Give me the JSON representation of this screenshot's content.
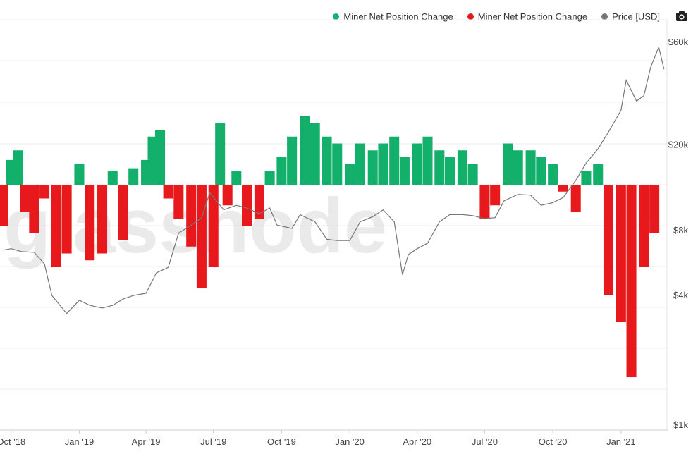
{
  "legend": {
    "items": [
      {
        "label": "Miner Net Position Change",
        "color": "#12b06a"
      },
      {
        "label": "Miner Net Position Change",
        "color": "#e8191c"
      },
      {
        "label": "Price [USD]",
        "color": "#777777"
      }
    ],
    "camera_icon": "camera-icon"
  },
  "watermark": "glassnode",
  "chart_data": {
    "type": "bar",
    "title": "",
    "series": [
      {
        "name": "Miner Net Position Change",
        "type": "bar",
        "colors": {
          "positive": "#12b06a",
          "negative": "#e8191c"
        },
        "x": [
          "2018-09-20",
          "2018-10-01",
          "2018-10-10",
          "2018-10-20",
          "2018-11-01",
          "2018-11-15",
          "2018-12-01",
          "2018-12-15",
          "2019-01-01",
          "2019-01-15",
          "2019-02-01",
          "2019-02-15",
          "2019-03-01",
          "2019-03-15",
          "2019-04-01",
          "2019-04-10",
          "2019-04-20",
          "2019-05-01",
          "2019-05-15",
          "2019-06-01",
          "2019-06-15",
          "2019-07-01",
          "2019-07-10",
          "2019-07-20",
          "2019-08-01",
          "2019-08-15",
          "2019-09-01",
          "2019-09-15",
          "2019-10-01",
          "2019-10-15",
          "2019-11-01",
          "2019-11-15",
          "2019-12-01",
          "2019-12-15",
          "2020-01-01",
          "2020-01-15",
          "2020-02-01",
          "2020-02-15",
          "2020-03-01",
          "2020-03-15",
          "2020-04-01",
          "2020-04-15",
          "2020-05-01",
          "2020-05-15",
          "2020-06-01",
          "2020-06-15",
          "2020-07-01",
          "2020-07-15",
          "2020-08-01",
          "2020-08-15",
          "2020-09-01",
          "2020-09-15",
          "2020-10-01",
          "2020-10-15",
          "2020-11-01",
          "2020-11-15",
          "2020-12-01",
          "2020-12-15",
          "2021-01-01",
          "2021-01-15",
          "2021-02-01",
          "2021-02-15"
        ],
        "values": [
          -30,
          18,
          25,
          -20,
          -35,
          -10,
          -60,
          -50,
          15,
          -55,
          -50,
          10,
          -40,
          12,
          18,
          35,
          40,
          -10,
          -25,
          -45,
          -75,
          -60,
          45,
          -15,
          10,
          -30,
          -25,
          10,
          20,
          35,
          50,
          45,
          35,
          30,
          15,
          30,
          25,
          30,
          35,
          20,
          30,
          35,
          25,
          20,
          25,
          15,
          -25,
          -15,
          30,
          25,
          25,
          20,
          15,
          -5,
          -20,
          10,
          15,
          -80,
          -100,
          -140,
          -60,
          -35
        ]
      },
      {
        "name": "Price [USD]",
        "type": "line",
        "color": "#777777",
        "x": [
          "2018-09-20",
          "2018-10-01",
          "2018-10-15",
          "2018-11-01",
          "2018-11-15",
          "2018-11-25",
          "2018-12-15",
          "2019-01-01",
          "2019-01-15",
          "2019-02-01",
          "2019-02-15",
          "2019-03-01",
          "2019-03-15",
          "2019-04-01",
          "2019-04-15",
          "2019-05-01",
          "2019-05-15",
          "2019-06-01",
          "2019-06-15",
          "2019-06-26",
          "2019-07-05",
          "2019-07-15",
          "2019-08-01",
          "2019-08-15",
          "2019-09-01",
          "2019-09-15",
          "2019-09-25",
          "2019-10-15",
          "2019-10-26",
          "2019-11-15",
          "2019-12-01",
          "2019-12-15",
          "2020-01-01",
          "2020-01-15",
          "2020-02-01",
          "2020-02-15",
          "2020-03-01",
          "2020-03-12",
          "2020-03-20",
          "2020-04-01",
          "2020-04-15",
          "2020-05-01",
          "2020-05-15",
          "2020-06-01",
          "2020-06-15",
          "2020-07-01",
          "2020-07-15",
          "2020-07-27",
          "2020-08-15",
          "2020-09-01",
          "2020-09-15",
          "2020-10-01",
          "2020-10-15",
          "2020-11-01",
          "2020-11-15",
          "2020-12-01",
          "2020-12-15",
          "2021-01-01",
          "2021-01-08",
          "2021-01-22",
          "2021-02-01",
          "2021-02-10",
          "2021-02-21",
          "2021-02-28"
        ],
        "values": [
          6500,
          6600,
          6400,
          6350,
          5600,
          4000,
          3300,
          3800,
          3600,
          3500,
          3600,
          3850,
          4000,
          4100,
          5100,
          5400,
          7800,
          8500,
          9200,
          12000,
          11000,
          10000,
          10500,
          10200,
          9600,
          10200,
          8500,
          8200,
          9500,
          8800,
          7300,
          7200,
          7200,
          8800,
          9300,
          10000,
          8800,
          5000,
          6200,
          6600,
          7000,
          8800,
          9500,
          9500,
          9400,
          9100,
          9200,
          11000,
          11800,
          11700,
          10500,
          10800,
          11400,
          13700,
          16500,
          19200,
          23000,
          29000,
          40000,
          32000,
          34000,
          46000,
          57000,
          45000
        ]
      }
    ],
    "ylabel": "",
    "xlabel": "",
    "y_price_ticks": [
      "$1k",
      "$4k",
      "$8k",
      "$20k",
      "$60k"
    ],
    "y_price_tick_values": [
      1000,
      4000,
      8000,
      20000,
      60000
    ],
    "x_tick_labels": [
      "Oct '18",
      "Jan '19",
      "Apr '19",
      "Jul '19",
      "Oct '19",
      "Jan '20",
      "Apr '20",
      "Jul '20",
      "Oct '20",
      "Jan '21"
    ],
    "x_tick_dates": [
      "2018-10-01",
      "2019-01-01",
      "2019-04-01",
      "2019-07-01",
      "2019-10-01",
      "2020-01-01",
      "2020-04-01",
      "2020-07-01",
      "2020-10-01",
      "2021-01-01"
    ],
    "x_range": [
      "2018-09-16",
      "2021-03-04"
    ],
    "price_range": [
      1000,
      60000
    ],
    "grid": true,
    "legend_position": "top-right"
  }
}
